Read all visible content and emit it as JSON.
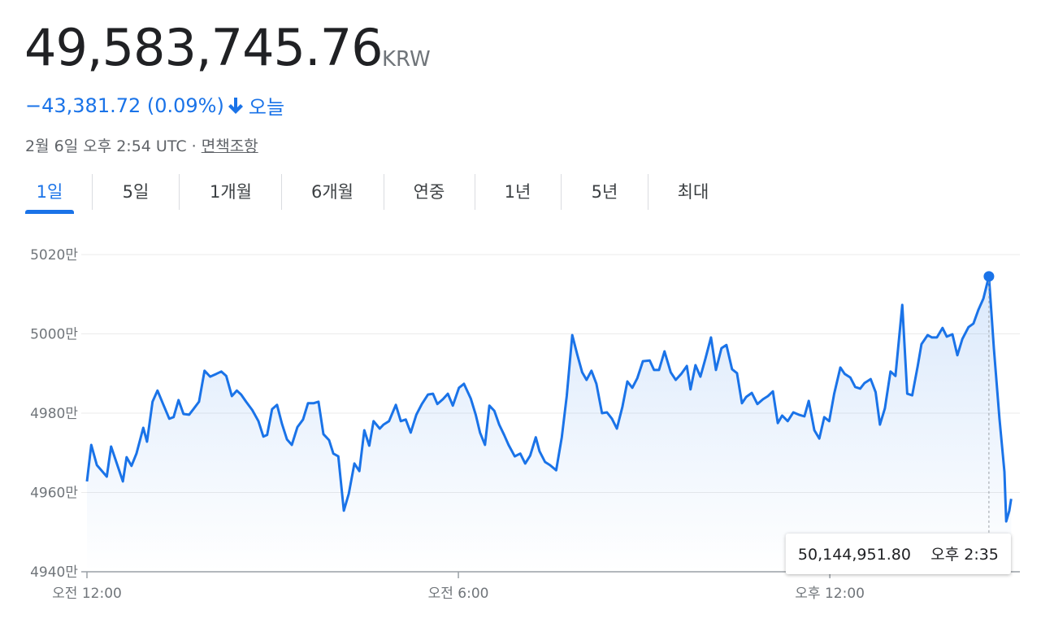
{
  "header": {
    "price": "49,583,745.76",
    "currency": "KRW",
    "change": "−43,381.72 (0.09%)",
    "period": "오늘",
    "date": "2월 6일 오후 2:54 UTC",
    "separator": "·",
    "disclaimer": "면책조항"
  },
  "tabs": [
    "1일",
    "5일",
    "1개월",
    "6개월",
    "연중",
    "1년",
    "5년",
    "최대"
  ],
  "chart_data": {
    "type": "line",
    "color": "#1a73e8",
    "grid": true,
    "x": [
      0,
      0.07,
      0.16,
      0.32,
      0.39,
      0.58,
      0.64,
      0.72,
      0.8,
      0.91,
      0.97,
      1.06,
      1.14,
      1.23,
      1.33,
      1.4,
      1.48,
      1.56,
      1.65,
      1.72,
      1.81,
      1.9,
      1.99,
      2.09,
      2.17,
      2.25,
      2.34,
      2.42,
      2.49,
      2.57,
      2.67,
      2.77,
      2.85,
      2.91,
      2.99,
      3.07,
      3.15,
      3.23,
      3.31,
      3.4,
      3.49,
      3.57,
      3.66,
      3.74,
      3.82,
      3.91,
      3.98,
      4.06,
      4.15,
      4.23,
      4.32,
      4.4,
      4.48,
      4.56,
      4.63,
      4.73,
      4.79,
      4.88,
      4.99,
      5.07,
      5.15,
      5.23,
      5.32,
      5.41,
      5.51,
      5.59,
      5.66,
      5.75,
      5.83,
      5.91,
      6.01,
      6.09,
      6.2,
      6.28,
      6.35,
      6.43,
      6.5,
      6.58,
      6.66,
      6.74,
      6.81,
      6.91,
      7,
      7.08,
      7.16,
      7.25,
      7.31,
      7.4,
      7.48,
      7.58,
      7.67,
      7.75,
      7.84,
      7.92,
      8,
      8.07,
      8.15,
      8.23,
      8.32,
      8.4,
      8.48,
      8.56,
      8.65,
      8.73,
      8.81,
      8.89,
      8.98,
      9.09,
      9.16,
      9.24,
      9.33,
      9.43,
      9.51,
      9.6,
      9.69,
      9.75,
      9.83,
      9.91,
      9.99,
      10.08,
      10.16,
      10.25,
      10.33,
      10.42,
      10.5,
      10.58,
      10.65,
      10.74,
      10.83,
      10.92,
      11,
      11.08,
      11.16,
      11.23,
      11.32,
      11.41,
      11.5,
      11.59,
      11.66,
      11.75,
      11.83,
      11.91,
      11.99,
      12.07,
      12.17,
      12.24,
      12.33,
      12.41,
      12.49,
      12.56,
      12.66,
      12.74,
      12.81,
      12.89,
      12.98,
      13.06,
      13.17,
      13.25,
      13.33,
      13.42,
      13.48,
      13.58,
      13.65,
      13.73,
      13.82,
      13.89,
      13.98,
      14.06,
      14.14,
      14.24,
      14.32,
      14.4,
      14.48,
      14.57,
      14.65,
      14.74,
      14.82,
      14.85,
      14.9,
      14.93
    ],
    "values": [
      49628000,
      49720000,
      49669000,
      49640000,
      49716000,
      49628000,
      49689000,
      49667000,
      49698000,
      49763000,
      49728000,
      49829000,
      49857000,
      49823000,
      49786000,
      49790000,
      49833000,
      49798000,
      49796000,
      49810000,
      49829000,
      49907000,
      49892000,
      49899000,
      49905000,
      49894000,
      49843000,
      49857000,
      49847000,
      49829000,
      49808000,
      49780000,
      49741000,
      49745000,
      49810000,
      49821000,
      49773000,
      49734000,
      49720000,
      49765000,
      49784000,
      49825000,
      49825000,
      49829000,
      49747000,
      49732000,
      49698000,
      49691000,
      49554000,
      49597000,
      49673000,
      49654000,
      49757000,
      49718000,
      49780000,
      49761000,
      49771000,
      49780000,
      49821000,
      49780000,
      49784000,
      49751000,
      49796000,
      49823000,
      49847000,
      49849000,
      49823000,
      49835000,
      49849000,
      49819000,
      49864000,
      49874000,
      49837000,
      49796000,
      49751000,
      49720000,
      49819000,
      49806000,
      49771000,
      49745000,
      49720000,
      49691000,
      49698000,
      49673000,
      49693000,
      49739000,
      49704000,
      49677000,
      49669000,
      49656000,
      49739000,
      49843000,
      49997000,
      49948000,
      49903000,
      49884000,
      49907000,
      49874000,
      49800000,
      49802000,
      49786000,
      49761000,
      49816000,
      49880000,
      49864000,
      49888000,
      49931000,
      49933000,
      49909000,
      49909000,
      49956000,
      49903000,
      49884000,
      49899000,
      49919000,
      49860000,
      49921000,
      49892000,
      49937000,
      49991000,
      49909000,
      49964000,
      49972000,
      49911000,
      49901000,
      49825000,
      49841000,
      49851000,
      49823000,
      49835000,
      49843000,
      49855000,
      49775000,
      49794000,
      49780000,
      49802000,
      49796000,
      49792000,
      49831000,
      49757000,
      49736000,
      49790000,
      49780000,
      49849000,
      49915000,
      49899000,
      49890000,
      49866000,
      49862000,
      49876000,
      49886000,
      49853000,
      49771000,
      49812000,
      49905000,
      49894000,
      50073000,
      49849000,
      49845000,
      49919000,
      49974000,
      49997000,
      49991000,
      49991000,
      50015000,
      49993000,
      49999000,
      49946000,
      49987000,
      50017000,
      50026000,
      50061000,
      50089000,
      50144951.8,
      49964000,
      49786000,
      49652000,
      49527000,
      49554000,
      49583745.76
    ],
    "xlim": [
      0,
      15.07
    ],
    "xticks": [
      {
        "value": 0,
        "label": "오전 12:00"
      },
      {
        "value": 6,
        "label": "오전 6:00"
      },
      {
        "value": 12,
        "label": "오후 12:00"
      }
    ],
    "ylim": [
      49400000,
      50200000
    ],
    "yticks": [
      {
        "value": 49400000,
        "label": "4940만"
      },
      {
        "value": 49600000,
        "label": "4960만"
      },
      {
        "value": 49800000,
        "label": "4980만"
      },
      {
        "value": 50000000,
        "label": "5000만"
      },
      {
        "value": 50200000,
        "label": "5020만"
      }
    ],
    "tooltip": {
      "label": "50,144,951.80",
      "time": "오후 2:35"
    }
  }
}
